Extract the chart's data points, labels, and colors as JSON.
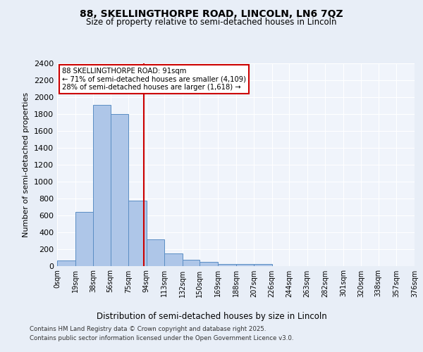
{
  "title1": "88, SKELLINGTHORPE ROAD, LINCOLN, LN6 7QZ",
  "title2": "Size of property relative to semi-detached houses in Lincoln",
  "xlabel": "Distribution of semi-detached houses by size in Lincoln",
  "ylabel": "Number of semi-detached properties",
  "bar_edges": [
    0,
    19,
    38,
    56,
    75,
    94,
    113,
    132,
    150,
    169,
    188,
    207,
    226,
    244,
    263,
    282,
    301,
    320,
    338,
    357,
    376
  ],
  "bar_heights": [
    60,
    640,
    1910,
    1800,
    770,
    310,
    150,
    70,
    45,
    25,
    18,
    18,
    0,
    0,
    0,
    0,
    0,
    0,
    0,
    0
  ],
  "bar_color": "#aec6e8",
  "bar_edge_color": "#5b8ec4",
  "property_size": 91,
  "vline_color": "#cc0000",
  "annotation_box_color": "#cc0000",
  "annotation_text": "88 SKELLINGTHORPE ROAD: 91sqm\n← 71% of semi-detached houses are smaller (4,109)\n28% of semi-detached houses are larger (1,618) →",
  "ylim": [
    0,
    2400
  ],
  "yticks": [
    0,
    200,
    400,
    600,
    800,
    1000,
    1200,
    1400,
    1600,
    1800,
    2000,
    2200,
    2400
  ],
  "tick_labels": [
    "0sqm",
    "19sqm",
    "38sqm",
    "56sqm",
    "75sqm",
    "94sqm",
    "113sqm",
    "132sqm",
    "150sqm",
    "169sqm",
    "188sqm",
    "207sqm",
    "226sqm",
    "244sqm",
    "263sqm",
    "282sqm",
    "301sqm",
    "320sqm",
    "338sqm",
    "357sqm",
    "376sqm"
  ],
  "footer1": "Contains HM Land Registry data © Crown copyright and database right 2025.",
  "footer2": "Contains public sector information licensed under the Open Government Licence v3.0.",
  "background_color": "#e8eef7",
  "plot_bg_color": "#f0f4fb"
}
